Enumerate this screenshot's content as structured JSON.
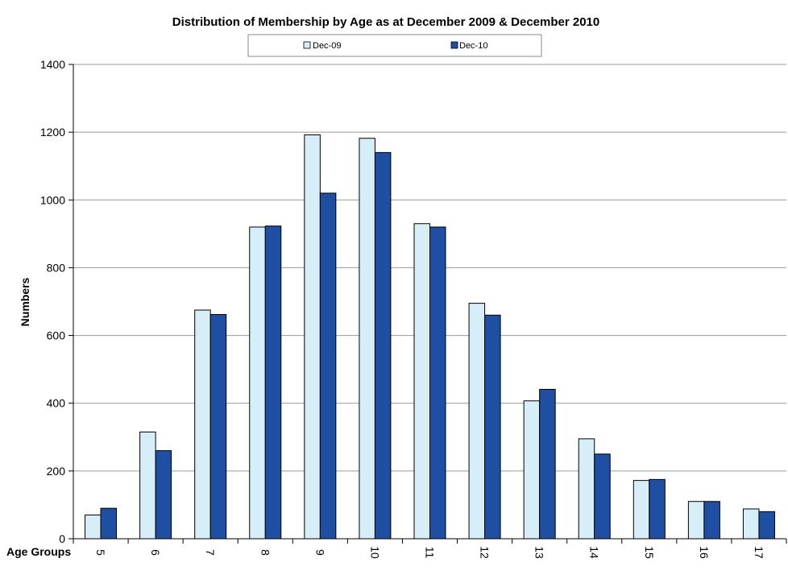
{
  "chart_data": {
    "type": "bar",
    "title": "Distribution of Membership by Age as at December 2009 & December 2010",
    "xlabel": "Age Groups",
    "ylabel": "Numbers",
    "categories": [
      "5",
      "6",
      "7",
      "8",
      "9",
      "10",
      "11",
      "12",
      "13",
      "14",
      "15",
      "16",
      "17"
    ],
    "series": [
      {
        "name": "Dec-09",
        "color": "#d6eef7",
        "values": [
          70,
          315,
          675,
          920,
          1192,
          1182,
          930,
          695,
          407,
          295,
          172,
          110,
          88
        ]
      },
      {
        "name": "Dec-10",
        "color": "#1f4fa3",
        "values": [
          90,
          260,
          662,
          923,
          1020,
          1140,
          920,
          660,
          441,
          250,
          175,
          110,
          80
        ]
      }
    ],
    "ylim": [
      0,
      1400
    ],
    "yticks": [
      0,
      200,
      400,
      600,
      800,
      1000,
      1200,
      1400
    ],
    "grid": true,
    "legend_position": "top"
  }
}
